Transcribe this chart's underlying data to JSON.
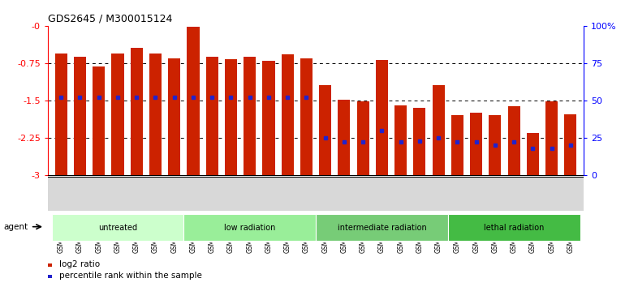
{
  "title": "GDS2645 / M300015124",
  "samples": [
    "GSM158484",
    "GSM158485",
    "GSM158486",
    "GSM158487",
    "GSM158488",
    "GSM158489",
    "GSM158490",
    "GSM158491",
    "GSM158492",
    "GSM158493",
    "GSM158494",
    "GSM158495",
    "GSM158496",
    "GSM158497",
    "GSM158498",
    "GSM158499",
    "GSM158500",
    "GSM158501",
    "GSM158502",
    "GSM158503",
    "GSM158504",
    "GSM158505",
    "GSM158506",
    "GSM158507",
    "GSM158508",
    "GSM158509",
    "GSM158510",
    "GSM158511"
  ],
  "log2_values": [
    -0.55,
    -0.62,
    -0.82,
    -0.55,
    -0.44,
    -0.56,
    -0.65,
    -0.02,
    -0.62,
    -0.67,
    -0.62,
    -0.7,
    -0.58,
    -0.65,
    -1.2,
    -1.48,
    -1.52,
    -0.68,
    -1.6,
    -1.65,
    -1.2,
    -1.8,
    -1.75,
    -1.8,
    -1.62,
    -2.15,
    -1.52,
    -1.78
  ],
  "percentile_values": [
    52,
    52,
    52,
    52,
    52,
    52,
    52,
    52,
    52,
    52,
    52,
    52,
    52,
    52,
    25,
    22,
    22,
    30,
    22,
    23,
    25,
    22,
    22,
    20,
    22,
    18,
    18,
    20
  ],
  "groups": [
    {
      "label": "untreated",
      "start": 0,
      "end": 6,
      "color": "#ccffcc"
    },
    {
      "label": "low radiation",
      "start": 7,
      "end": 13,
      "color": "#99ee99"
    },
    {
      "label": "intermediate radiation",
      "start": 14,
      "end": 20,
      "color": "#77cc77"
    },
    {
      "label": "lethal radiation",
      "start": 21,
      "end": 27,
      "color": "#44bb44"
    }
  ],
  "bar_color": "#cc2200",
  "dot_color": "#2222cc",
  "ymin": -3,
  "ymax": 0,
  "yticks_left": [
    -3,
    -2.25,
    -1.5,
    -0.75,
    0
  ],
  "ytick_labels_left": [
    "-3",
    "-2.25",
    "-1.5",
    "-0.75",
    "-0"
  ],
  "yticks_right_pct": [
    0,
    25,
    50,
    75,
    100
  ],
  "legend_labels": [
    "log2 ratio",
    "percentile rank within the sample"
  ],
  "agent_label": "agent"
}
